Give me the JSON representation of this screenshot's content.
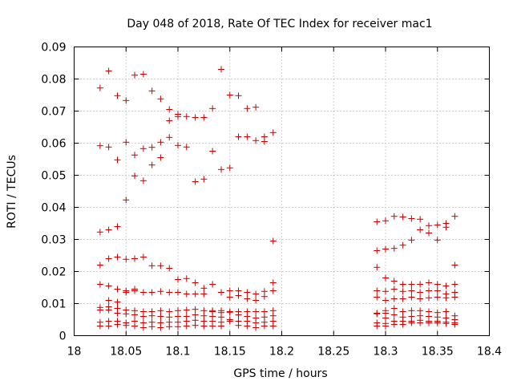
{
  "chart_data": {
    "type": "scatter",
    "title": "Day 048 of 2018, Rate Of TEC Index for receiver mac1",
    "xlabel": "GPS time / hours",
    "ylabel": "ROTI / TECUs",
    "xlim": [
      18,
      18.4
    ],
    "ylim": [
      0,
      0.09
    ],
    "grid": true,
    "marker": "+",
    "color": "#cc0000",
    "x_ticks": [
      "18",
      "18.05",
      "18.1",
      "18.15",
      "18.2",
      "18.25",
      "18.3",
      "18.35",
      "18.4"
    ],
    "y_ticks": [
      "0",
      "0.01",
      "0.02",
      "0.03",
      "0.04",
      "0.05",
      "0.06",
      "0.07",
      "0.08",
      "0.09"
    ],
    "series": [
      {
        "name": "mac1",
        "points": [
          [
            18.025,
            0.0772
          ],
          [
            18.025,
            0.0592
          ],
          [
            18.025,
            0.0323
          ],
          [
            18.025,
            0.022
          ],
          [
            18.025,
            0.016
          ],
          [
            18.025,
            0.0088
          ],
          [
            18.025,
            0.008
          ],
          [
            18.025,
            0.0042
          ],
          [
            18.025,
            0.003
          ],
          [
            18.0333,
            0.0825
          ],
          [
            18.0333,
            0.0588
          ],
          [
            18.0333,
            0.033
          ],
          [
            18.0333,
            0.024
          ],
          [
            18.0333,
            0.0155
          ],
          [
            18.0333,
            0.011
          ],
          [
            18.0333,
            0.009
          ],
          [
            18.0333,
            0.008
          ],
          [
            18.0333,
            0.0045
          ],
          [
            18.0333,
            0.003
          ],
          [
            18.0417,
            0.0748
          ],
          [
            18.0417,
            0.0548
          ],
          [
            18.0417,
            0.034
          ],
          [
            18.0417,
            0.0245
          ],
          [
            18.0417,
            0.0145
          ],
          [
            18.0417,
            0.0105
          ],
          [
            18.0417,
            0.0085
          ],
          [
            18.0417,
            0.007
          ],
          [
            18.0417,
            0.0045
          ],
          [
            18.0417,
            0.0035
          ],
          [
            18.05,
            0.0733
          ],
          [
            18.05,
            0.0603
          ],
          [
            18.05,
            0.0423
          ],
          [
            18.05,
            0.0238
          ],
          [
            18.05,
            0.014
          ],
          [
            18.05,
            0.0135
          ],
          [
            18.05,
            0.008
          ],
          [
            18.05,
            0.0068
          ],
          [
            18.05,
            0.004
          ],
          [
            18.05,
            0.0032
          ],
          [
            18.0583,
            0.0812
          ],
          [
            18.0583,
            0.0563
          ],
          [
            18.0583,
            0.0498
          ],
          [
            18.0583,
            0.024
          ],
          [
            18.0583,
            0.0145
          ],
          [
            18.0583,
            0.014
          ],
          [
            18.0583,
            0.0078
          ],
          [
            18.0583,
            0.0065
          ],
          [
            18.0583,
            0.0045
          ],
          [
            18.0583,
            0.003
          ],
          [
            18.0667,
            0.0815
          ],
          [
            18.0667,
            0.0583
          ],
          [
            18.0667,
            0.0483
          ],
          [
            18.0667,
            0.0245
          ],
          [
            18.0667,
            0.0135
          ],
          [
            18.0667,
            0.0075
          ],
          [
            18.0667,
            0.006
          ],
          [
            18.0667,
            0.004
          ],
          [
            18.0667,
            0.0025
          ],
          [
            18.075,
            0.0763
          ],
          [
            18.075,
            0.0587
          ],
          [
            18.075,
            0.0532
          ],
          [
            18.075,
            0.0218
          ],
          [
            18.075,
            0.0135
          ],
          [
            18.075,
            0.0075
          ],
          [
            18.075,
            0.0062
          ],
          [
            18.075,
            0.0042
          ],
          [
            18.075,
            0.0028
          ],
          [
            18.0833,
            0.0738
          ],
          [
            18.0833,
            0.0603
          ],
          [
            18.0833,
            0.0555
          ],
          [
            18.0833,
            0.0218
          ],
          [
            18.0833,
            0.0138
          ],
          [
            18.0833,
            0.0078
          ],
          [
            18.0833,
            0.006
          ],
          [
            18.0833,
            0.004
          ],
          [
            18.0833,
            0.0025
          ],
          [
            18.0917,
            0.0705
          ],
          [
            18.0917,
            0.067
          ],
          [
            18.0917,
            0.0618
          ],
          [
            18.0917,
            0.021
          ],
          [
            18.0917,
            0.0135
          ],
          [
            18.0917,
            0.0075
          ],
          [
            18.0917,
            0.0058
          ],
          [
            18.0917,
            0.0042
          ],
          [
            18.0917,
            0.0028
          ],
          [
            18.1,
            0.069
          ],
          [
            18.1,
            0.0683
          ],
          [
            18.1,
            0.0593
          ],
          [
            18.1,
            0.0175
          ],
          [
            18.1,
            0.0135
          ],
          [
            18.1,
            0.0078
          ],
          [
            18.1,
            0.006
          ],
          [
            18.1,
            0.0042
          ],
          [
            18.1,
            0.0028
          ],
          [
            18.1083,
            0.0683
          ],
          [
            18.1083,
            0.0588
          ],
          [
            18.1083,
            0.0178
          ],
          [
            18.1083,
            0.013
          ],
          [
            18.1083,
            0.008
          ],
          [
            18.1083,
            0.006
          ],
          [
            18.1083,
            0.0045
          ],
          [
            18.1083,
            0.003
          ],
          [
            18.1167,
            0.068
          ],
          [
            18.1167,
            0.048
          ],
          [
            18.1167,
            0.0165
          ],
          [
            18.1167,
            0.013
          ],
          [
            18.1167,
            0.0082
          ],
          [
            18.1167,
            0.0065
          ],
          [
            18.1167,
            0.0048
          ],
          [
            18.1167,
            0.0032
          ],
          [
            18.125,
            0.068
          ],
          [
            18.125,
            0.0488
          ],
          [
            18.125,
            0.0148
          ],
          [
            18.125,
            0.013
          ],
          [
            18.125,
            0.0078
          ],
          [
            18.125,
            0.0062
          ],
          [
            18.125,
            0.0045
          ],
          [
            18.125,
            0.003
          ],
          [
            18.1333,
            0.0708
          ],
          [
            18.1333,
            0.0575
          ],
          [
            18.1333,
            0.016
          ],
          [
            18.1333,
            0.0078
          ],
          [
            18.1333,
            0.0075
          ],
          [
            18.1333,
            0.006
          ],
          [
            18.1333,
            0.0045
          ],
          [
            18.1333,
            0.003
          ],
          [
            18.1417,
            0.083
          ],
          [
            18.1417,
            0.0518
          ],
          [
            18.1417,
            0.0135
          ],
          [
            18.1417,
            0.0078
          ],
          [
            18.1417,
            0.0072
          ],
          [
            18.1417,
            0.0058
          ],
          [
            18.1417,
            0.0042
          ],
          [
            18.1417,
            0.003
          ],
          [
            18.15,
            0.075
          ],
          [
            18.15,
            0.0523
          ],
          [
            18.15,
            0.014
          ],
          [
            18.15,
            0.012
          ],
          [
            18.15,
            0.0075
          ],
          [
            18.15,
            0.0072
          ],
          [
            18.15,
            0.005
          ],
          [
            18.15,
            0.0045
          ],
          [
            18.1583,
            0.0748
          ],
          [
            18.1583,
            0.062
          ],
          [
            18.1583,
            0.014
          ],
          [
            18.1583,
            0.0125
          ],
          [
            18.1583,
            0.0075
          ],
          [
            18.1583,
            0.0065
          ],
          [
            18.1583,
            0.0045
          ],
          [
            18.1583,
            0.0032
          ],
          [
            18.1667,
            0.0708
          ],
          [
            18.1667,
            0.062
          ],
          [
            18.1667,
            0.0135
          ],
          [
            18.1667,
            0.0115
          ],
          [
            18.1667,
            0.0075
          ],
          [
            18.1667,
            0.006
          ],
          [
            18.1667,
            0.0045
          ],
          [
            18.1667,
            0.003
          ],
          [
            18.175,
            0.0712
          ],
          [
            18.175,
            0.0608
          ],
          [
            18.175,
            0.013
          ],
          [
            18.175,
            0.011
          ],
          [
            18.175,
            0.0075
          ],
          [
            18.175,
            0.0055
          ],
          [
            18.175,
            0.004
          ],
          [
            18.175,
            0.0025
          ],
          [
            18.1833,
            0.062
          ],
          [
            18.1833,
            0.0605
          ],
          [
            18.1833,
            0.0138
          ],
          [
            18.1833,
            0.0122
          ],
          [
            18.1833,
            0.0075
          ],
          [
            18.1833,
            0.0058
          ],
          [
            18.1833,
            0.0042
          ],
          [
            18.1833,
            0.003
          ],
          [
            18.1917,
            0.0633
          ],
          [
            18.1917,
            0.0295
          ],
          [
            18.1917,
            0.0165
          ],
          [
            18.1917,
            0.014
          ],
          [
            18.1917,
            0.0078
          ],
          [
            18.1917,
            0.0062
          ],
          [
            18.1917,
            0.0045
          ],
          [
            18.1917,
            0.003
          ],
          [
            18.2917,
            0.0355
          ],
          [
            18.2917,
            0.0265
          ],
          [
            18.2917,
            0.0213
          ],
          [
            18.2917,
            0.014
          ],
          [
            18.2917,
            0.012
          ],
          [
            18.2917,
            0.007
          ],
          [
            18.2917,
            0.0068
          ],
          [
            18.2917,
            0.004
          ],
          [
            18.2917,
            0.003
          ],
          [
            18.3,
            0.0358
          ],
          [
            18.3,
            0.027
          ],
          [
            18.3,
            0.018
          ],
          [
            18.3,
            0.0138
          ],
          [
            18.3,
            0.011
          ],
          [
            18.3,
            0.0078
          ],
          [
            18.3,
            0.007
          ],
          [
            18.3,
            0.0055
          ],
          [
            18.3,
            0.0038
          ],
          [
            18.3,
            0.003
          ],
          [
            18.3083,
            0.0372
          ],
          [
            18.3083,
            0.0272
          ],
          [
            18.3083,
            0.017
          ],
          [
            18.3083,
            0.0145
          ],
          [
            18.3083,
            0.0115
          ],
          [
            18.3083,
            0.0085
          ],
          [
            18.3083,
            0.0065
          ],
          [
            18.3083,
            0.0045
          ],
          [
            18.3083,
            0.0035
          ],
          [
            18.3167,
            0.037
          ],
          [
            18.3167,
            0.0282
          ],
          [
            18.3167,
            0.016
          ],
          [
            18.3167,
            0.0138
          ],
          [
            18.3167,
            0.0115
          ],
          [
            18.3167,
            0.0075
          ],
          [
            18.3167,
            0.0058
          ],
          [
            18.3167,
            0.0045
          ],
          [
            18.3167,
            0.0035
          ],
          [
            18.325,
            0.0365
          ],
          [
            18.325,
            0.0298
          ],
          [
            18.325,
            0.016
          ],
          [
            18.325,
            0.014
          ],
          [
            18.325,
            0.012
          ],
          [
            18.325,
            0.0078
          ],
          [
            18.325,
            0.006
          ],
          [
            18.325,
            0.0045
          ],
          [
            18.325,
            0.004
          ],
          [
            18.3333,
            0.0363
          ],
          [
            18.3333,
            0.033
          ],
          [
            18.3333,
            0.016
          ],
          [
            18.3333,
            0.0135
          ],
          [
            18.3333,
            0.0115
          ],
          [
            18.3333,
            0.0078
          ],
          [
            18.3333,
            0.0062
          ],
          [
            18.3333,
            0.0048
          ],
          [
            18.3333,
            0.004
          ],
          [
            18.3417,
            0.0343
          ],
          [
            18.3417,
            0.032
          ],
          [
            18.3417,
            0.0165
          ],
          [
            18.3417,
            0.014
          ],
          [
            18.3417,
            0.0118
          ],
          [
            18.3417,
            0.0075
          ],
          [
            18.3417,
            0.006
          ],
          [
            18.3417,
            0.0045
          ],
          [
            18.3417,
            0.004
          ],
          [
            18.35,
            0.0345
          ],
          [
            18.35,
            0.0298
          ],
          [
            18.35,
            0.016
          ],
          [
            18.35,
            0.014
          ],
          [
            18.35,
            0.012
          ],
          [
            18.35,
            0.0072
          ],
          [
            18.35,
            0.0058
          ],
          [
            18.35,
            0.0045
          ],
          [
            18.35,
            0.004
          ],
          [
            18.3583,
            0.035
          ],
          [
            18.3583,
            0.0338
          ],
          [
            18.3583,
            0.0155
          ],
          [
            18.3583,
            0.013
          ],
          [
            18.3583,
            0.0118
          ],
          [
            18.3583,
            0.0075
          ],
          [
            18.3583,
            0.0055
          ],
          [
            18.3583,
            0.0042
          ],
          [
            18.3583,
            0.0038
          ],
          [
            18.3667,
            0.0372
          ],
          [
            18.3667,
            0.022
          ],
          [
            18.3667,
            0.016
          ],
          [
            18.3667,
            0.0135
          ],
          [
            18.3667,
            0.012
          ],
          [
            18.3667,
            0.0062
          ],
          [
            18.3667,
            0.005
          ],
          [
            18.3667,
            0.004
          ],
          [
            18.3667,
            0.0035
          ]
        ]
      }
    ]
  }
}
